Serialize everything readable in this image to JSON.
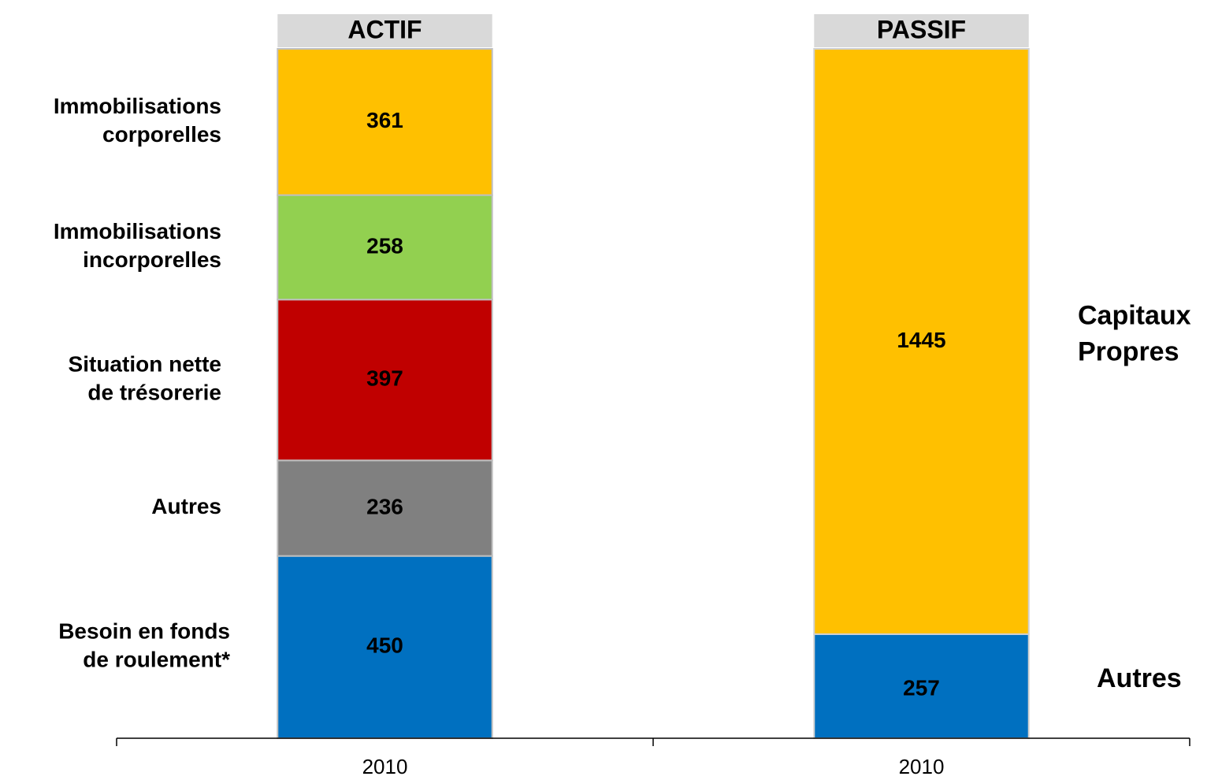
{
  "chart_data": {
    "type": "stacked_bar",
    "categories": [
      "2010",
      "2010"
    ],
    "bars": [
      {
        "title": "ACTIF",
        "segments": [
          {
            "label": [
              "Besoin en fonds",
              "de roulement*"
            ],
            "color": "#0070c0",
            "value": 450
          },
          {
            "label": [
              "Autres"
            ],
            "color": "#808080",
            "value": 236
          },
          {
            "label": [
              "Situation nette",
              "de trésorerie"
            ],
            "color": "#c00000",
            "value": 397
          },
          {
            "label": [
              "Immobilisations",
              "incorporelles"
            ],
            "color": "#92d050",
            "value": 258
          },
          {
            "label": [
              "Immobilisations",
              "corporelles"
            ],
            "color": "#ffc000",
            "value": 361
          }
        ]
      },
      {
        "title": "PASSIF",
        "segments": [
          {
            "label": [
              "Autres"
            ],
            "color": "#0070c0",
            "value": 257
          },
          {
            "label": [
              "Capitaux",
              "Propres"
            ],
            "color": "#ffc000",
            "value": 1445
          }
        ]
      }
    ]
  }
}
